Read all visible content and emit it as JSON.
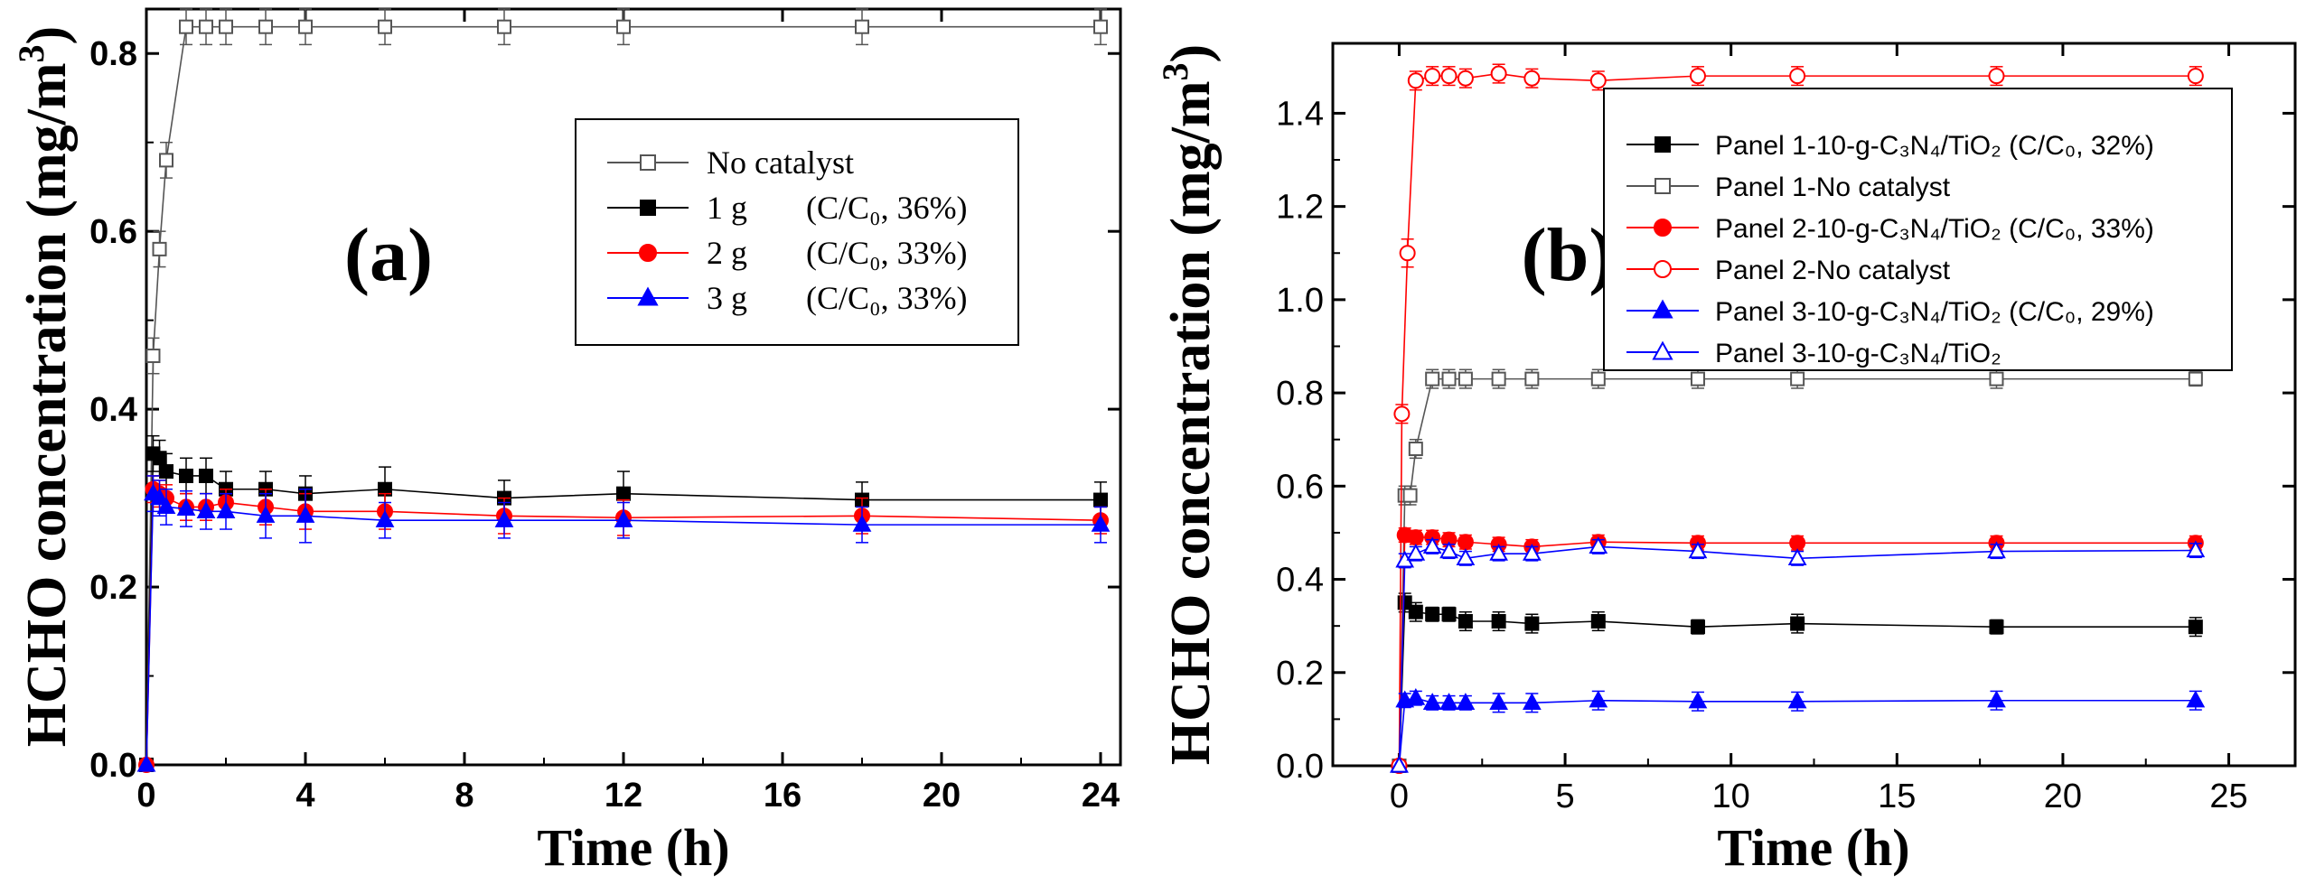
{
  "chart_data": [
    {
      "type": "line",
      "panel": "(a)",
      "xlabel": "Time (h)",
      "ylabel_main": "HCHO concentration (mg/m",
      "ylabel_sup": "3",
      "ylabel_end": ")",
      "xlim": [
        0,
        24.5
      ],
      "ylim": [
        0,
        0.85
      ],
      "xticks": [
        0,
        4,
        8,
        12,
        16,
        20,
        24
      ],
      "xtick_labels": [
        "0",
        "4",
        "8",
        "12",
        "16",
        "20",
        "24"
      ],
      "yticks": [
        0.0,
        0.2,
        0.4,
        0.6,
        0.8
      ],
      "ytick_labels": [
        "0.0",
        "0.2",
        "0.4",
        "0.6",
        "0.8"
      ],
      "legend_position": "top-right",
      "series": [
        {
          "name": "No catalyst",
          "note": "",
          "color": "#555555",
          "marker": "square-open",
          "x": [
            0,
            0.17,
            0.33,
            0.5,
            1,
            1.5,
            2,
            3,
            4,
            6,
            9,
            12,
            18,
            24
          ],
          "y": [
            0,
            0.46,
            0.58,
            0.68,
            0.83,
            0.83,
            0.83,
            0.83,
            0.83,
            0.83,
            0.83,
            0.83,
            0.83,
            0.83
          ],
          "err": [
            0,
            0.02,
            0.02,
            0.02,
            0.02,
            0.02,
            0.02,
            0.02,
            0.02,
            0.02,
            0.02,
            0.02,
            0.02,
            0.02
          ]
        },
        {
          "name": "1 g",
          "note": "(C/C₀, 36%)",
          "color": "#000000",
          "marker": "square-filled",
          "x": [
            0,
            0.17,
            0.33,
            0.5,
            1,
            1.5,
            2,
            3,
            4,
            6,
            9,
            12,
            18,
            24
          ],
          "y": [
            0,
            0.35,
            0.345,
            0.33,
            0.325,
            0.325,
            0.31,
            0.31,
            0.305,
            0.31,
            0.3,
            0.305,
            0.298,
            0.298
          ],
          "err": [
            0,
            0.02,
            0.02,
            0.02,
            0.02,
            0.02,
            0.02,
            0.02,
            0.02,
            0.025,
            0.02,
            0.025,
            0.02,
            0.02
          ]
        },
        {
          "name": "2 g",
          "note": "(C/C₀, 33%)",
          "color": "#ff0000",
          "marker": "circle-filled",
          "x": [
            0,
            0.17,
            0.33,
            0.5,
            1,
            1.5,
            2,
            3,
            4,
            6,
            9,
            12,
            18,
            24
          ],
          "y": [
            0,
            0.31,
            0.305,
            0.3,
            0.29,
            0.29,
            0.295,
            0.29,
            0.285,
            0.285,
            0.28,
            0.278,
            0.28,
            0.275
          ],
          "err": [
            0,
            0.015,
            0.015,
            0.015,
            0.015,
            0.015,
            0.015,
            0.02,
            0.02,
            0.02,
            0.02,
            0.02,
            0.02,
            0.015
          ]
        },
        {
          "name": "3 g",
          "note": "(C/C₀, 33%)",
          "color": "#0000ff",
          "marker": "triangle-filled",
          "x": [
            0,
            0.17,
            0.33,
            0.5,
            1,
            1.5,
            2,
            3,
            4,
            6,
            9,
            12,
            18,
            24
          ],
          "y": [
            0,
            0.305,
            0.3,
            0.29,
            0.288,
            0.285,
            0.285,
            0.28,
            0.28,
            0.275,
            0.275,
            0.275,
            0.27,
            0.27
          ],
          "err": [
            0,
            0.02,
            0.02,
            0.02,
            0.02,
            0.02,
            0.02,
            0.025,
            0.03,
            0.02,
            0.02,
            0.02,
            0.02,
            0.02
          ]
        }
      ]
    },
    {
      "type": "line",
      "panel": "(b)",
      "xlabel": "Time (h)",
      "ylabel_main": "HCHO concentration (mg/m",
      "ylabel_sup": "3",
      "ylabel_end": ")",
      "xlim": [
        -2,
        27
      ],
      "ylim": [
        0,
        1.55
      ],
      "xticks": [
        0,
        5,
        10,
        15,
        20,
        25
      ],
      "xtick_labels": [
        "0",
        "5",
        "10",
        "15",
        "20",
        "25"
      ],
      "yticks": [
        0.0,
        0.2,
        0.4,
        0.6,
        0.8,
        1.0,
        1.2,
        1.4
      ],
      "ytick_labels": [
        "0.0",
        "0.2",
        "0.4",
        "0.6",
        "0.8",
        "1.0",
        "1.2",
        "1.4"
      ],
      "legend_position": "top-right",
      "series": [
        {
          "name": "Panel 1-10-g-C₃N₄/TiO₂ (C/C₀, 32%)",
          "color": "#000000",
          "marker": "square-filled",
          "x": [
            0,
            0.17,
            0.5,
            1,
            1.5,
            2,
            3,
            4,
            6,
            9,
            12,
            18,
            24
          ],
          "y": [
            0,
            0.35,
            0.33,
            0.325,
            0.325,
            0.31,
            0.31,
            0.305,
            0.31,
            0.298,
            0.305,
            0.298,
            0.298
          ],
          "err": [
            0,
            0.02,
            0.02,
            0.015,
            0.015,
            0.02,
            0.02,
            0.02,
            0.02,
            0.015,
            0.02,
            0.015,
            0.02
          ]
        },
        {
          "name": "Panel 1-No catalyst",
          "color": "#555555",
          "marker": "square-open",
          "x": [
            0,
            0.17,
            0.33,
            0.5,
            1,
            1.5,
            2,
            3,
            4,
            6,
            9,
            12,
            18,
            24
          ],
          "y": [
            0,
            0.58,
            0.58,
            0.68,
            0.83,
            0.83,
            0.83,
            0.83,
            0.83,
            0.83,
            0.83,
            0.83,
            0.83,
            0.83
          ],
          "err": [
            0,
            0.02,
            0.02,
            0.02,
            0.02,
            0.02,
            0.02,
            0.02,
            0.02,
            0.02,
            0.02,
            0.02,
            0.02,
            0.015
          ]
        },
        {
          "name": "Panel 2-10-g-C₃N₄/TiO₂ (C/C₀, 33%)",
          "color": "#ff0000",
          "marker": "circle-filled",
          "x": [
            0,
            0.17,
            0.5,
            1,
            1.5,
            2,
            3,
            4,
            6,
            9,
            12,
            18,
            24
          ],
          "y": [
            0,
            0.495,
            0.49,
            0.49,
            0.485,
            0.48,
            0.475,
            0.47,
            0.48,
            0.478,
            0.478,
            0.478,
            0.478
          ],
          "err": [
            0,
            0.015,
            0.015,
            0.015,
            0.015,
            0.015,
            0.015,
            0.015,
            0.015,
            0.015,
            0.015,
            0.015,
            0.015
          ]
        },
        {
          "name": "Panel 2-No catalyst",
          "color": "#ff0000",
          "marker": "circle-open",
          "x": [
            0,
            0.08,
            0.25,
            0.5,
            1,
            1.5,
            2,
            3,
            4,
            6,
            9,
            12,
            18,
            24
          ],
          "y": [
            0,
            0.755,
            1.1,
            1.47,
            1.48,
            1.48,
            1.475,
            1.485,
            1.475,
            1.47,
            1.48,
            1.48,
            1.48,
            1.48
          ],
          "err": [
            0,
            0.02,
            0.03,
            0.02,
            0.02,
            0.02,
            0.02,
            0.02,
            0.02,
            0.02,
            0.02,
            0.02,
            0.02,
            0.02
          ]
        },
        {
          "name": "Panel 3-10-g-C₃N₄/TiO₂ (C/C₀, 29%)",
          "color": "#0000ff",
          "marker": "triangle-filled",
          "x": [
            0,
            0.17,
            0.5,
            1,
            1.5,
            2,
            3,
            4,
            6,
            9,
            12,
            18,
            24
          ],
          "y": [
            0,
            0.14,
            0.145,
            0.135,
            0.135,
            0.135,
            0.135,
            0.135,
            0.14,
            0.138,
            0.138,
            0.14,
            0.14
          ],
          "err": [
            0,
            0.015,
            0.015,
            0.015,
            0.015,
            0.015,
            0.02,
            0.02,
            0.02,
            0.02,
            0.02,
            0.02,
            0.02
          ]
        },
        {
          "name": "Panel 3-10-g-C₃N₄/TiO₂",
          "color": "#0000ff",
          "marker": "triangle-open",
          "x": [
            0,
            0.17,
            0.5,
            1,
            1.5,
            2,
            3,
            4,
            6,
            9,
            12,
            18,
            24
          ],
          "y": [
            0,
            0.44,
            0.455,
            0.47,
            0.46,
            0.445,
            0.455,
            0.455,
            0.47,
            0.46,
            0.445,
            0.46,
            0.462
          ],
          "err": [
            0,
            0.015,
            0.015,
            0.015,
            0.015,
            0.015,
            0.015,
            0.015,
            0.015,
            0.015,
            0.015,
            0.015,
            0.015
          ]
        }
      ]
    }
  ]
}
